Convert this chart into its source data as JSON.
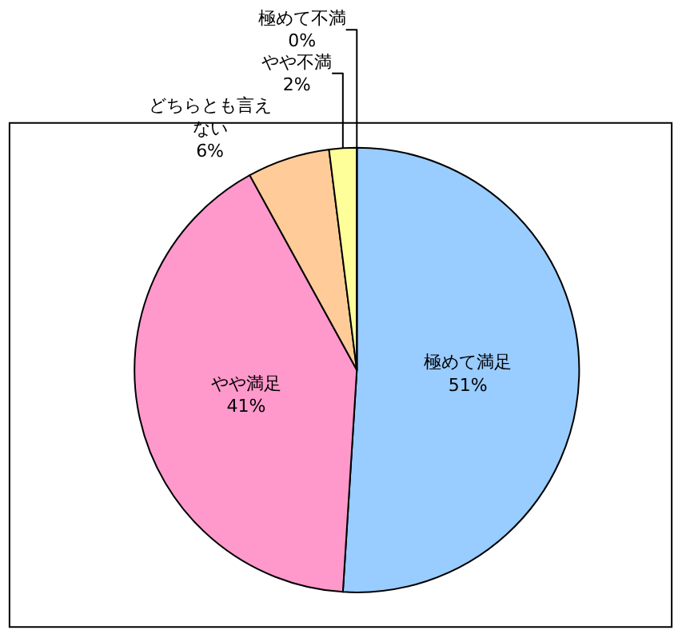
{
  "chart_data": {
    "type": "pie",
    "categories": [
      "極めて満足",
      "やや満足",
      "どちらとも言えない",
      "やや不満",
      "極めて不満"
    ],
    "values": [
      51,
      41,
      6,
      2,
      0
    ],
    "value_labels": [
      "51%",
      "41%",
      "6%",
      "2%",
      "0%"
    ],
    "colors": [
      "#99ccff",
      "#ff99cc",
      "#ffcc99",
      "#ffff99",
      "#cc99ff"
    ],
    "legend": false
  }
}
